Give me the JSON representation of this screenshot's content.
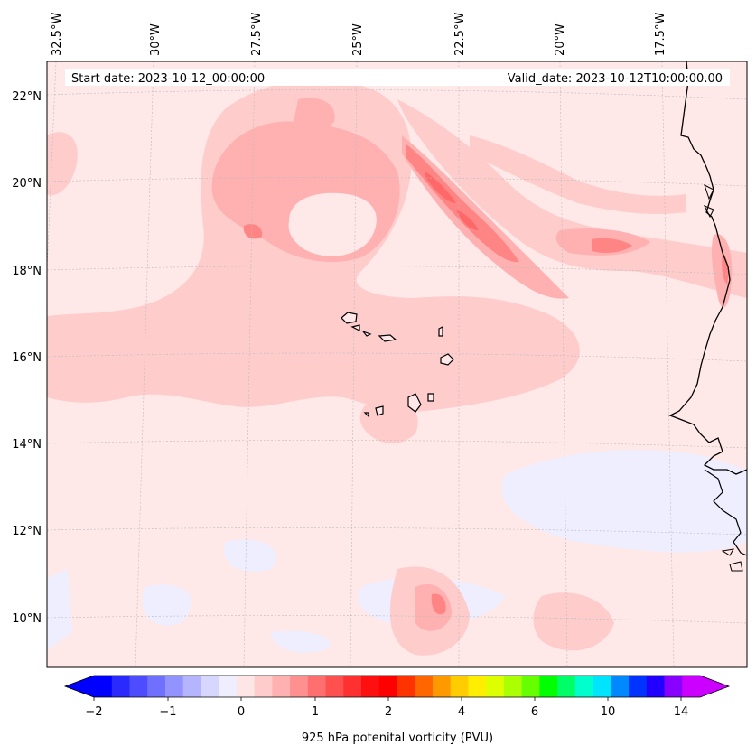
{
  "header": {
    "start_date": "Start date: 2023-10-12_00:00:00",
    "valid_date": "Valid_date: 2023-10-12T10:00:00.00"
  },
  "map": {
    "projection": "Lambert conformal",
    "lon_labels": [
      "32.5°W",
      "30°W",
      "27.5°W",
      "25°W",
      "22.5°W",
      "20°W",
      "17.5°W"
    ],
    "lat_labels": [
      "22°N",
      "20°N",
      "18°N",
      "16°N",
      "14°N",
      "12°N",
      "10°N"
    ],
    "features": [
      "Cape Verde islands",
      "West African coastline"
    ]
  },
  "colorbar": {
    "label": "925 hPa potenital vorticity (PVU)",
    "tick_labels": [
      "−2",
      "−1",
      "0",
      "1",
      "2",
      "4",
      "6",
      "10",
      "14"
    ],
    "colors": [
      "#0000ff",
      "#2a2aff",
      "#4d4dff",
      "#7070ff",
      "#9393ff",
      "#b5b5ff",
      "#d6d6ff",
      "#eeeeff",
      "#ffe6e6",
      "#ffcccc",
      "#ffb0b0",
      "#ff9090",
      "#ff6f6f",
      "#ff5050",
      "#ff3030",
      "#ff1010",
      "#ff0000",
      "#ff3300",
      "#ff6600",
      "#ff9900",
      "#ffcc00",
      "#ffee00",
      "#ddff00",
      "#aaff00",
      "#66ff00",
      "#00ff00",
      "#00ff66",
      "#00ffcc",
      "#00e5ff",
      "#0088ff",
      "#0033ff",
      "#2200ff",
      "#8800ff",
      "#cc00ff"
    ],
    "extend_low_color": "#0000ff",
    "extend_high_color": "#cc00ff"
  }
}
